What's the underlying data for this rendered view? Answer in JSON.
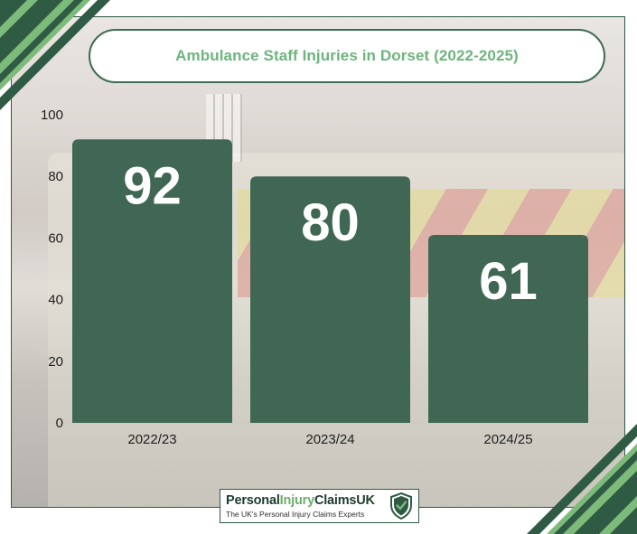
{
  "chart_data": {
    "type": "bar",
    "title": "Ambulance Staff Injuries in Dorset (2022-2025)",
    "categories": [
      "2022/23",
      "2023/24",
      "2024/25"
    ],
    "values": [
      92,
      80,
      61
    ],
    "value_labels": [
      "92",
      "80",
      "61"
    ],
    "yticks": [
      "0",
      "20",
      "40",
      "60",
      "80",
      "100"
    ],
    "ytick_values": [
      0,
      20,
      40,
      60,
      80,
      100
    ],
    "ylim": [
      0,
      100
    ],
    "xlabel": "",
    "ylabel": "",
    "grid": false,
    "bar_color": "#3f6753"
  },
  "logo": {
    "name_part1": "Personal",
    "name_part2": "Injury",
    "name_part3": "ClaimsUK",
    "tagline": "The UK's Personal Injury Claims Experts",
    "icon": "shield-check-icon"
  },
  "colors": {
    "frame_border": "#2f5b45",
    "title_text": "#6db57d",
    "dark_green": "#2f5b45",
    "light_green": "#7dbb7a"
  }
}
